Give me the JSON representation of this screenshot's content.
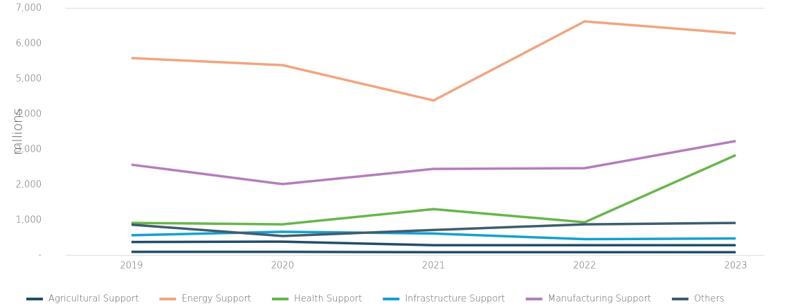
{
  "chart_data": {
    "type": "line",
    "y_label": "mllions",
    "categories": [
      "2019",
      "2020",
      "2021",
      "2022",
      "2023"
    ],
    "series": [
      {
        "name": "Agricultural Support",
        "color": "#1f4e6b",
        "values": [
          380,
          390,
          290,
          290,
          290
        ]
      },
      {
        "name": "Energy Support",
        "color": "#f0a57e",
        "values": [
          5590,
          5390,
          4390,
          6630,
          6290
        ]
      },
      {
        "name": "Health Support",
        "color": "#66b64a",
        "values": [
          920,
          880,
          1310,
          940,
          2840
        ]
      },
      {
        "name": "Infrastructure Support",
        "color": "#13a0d0",
        "values": [
          570,
          670,
          620,
          460,
          480
        ]
      },
      {
        "name": "Manufacturing Support",
        "color": "#b57cbd",
        "values": [
          2570,
          2020,
          2450,
          2470,
          3240
        ]
      },
      {
        "name": "Others",
        "color": "#3e5d6e",
        "values": [
          870,
          550,
          720,
          880,
          920
        ]
      },
      {
        "color": "#1f4e6b",
        "values": [
          100,
          100,
          90,
          90,
          90
        ]
      }
    ],
    "ylim": [
      0,
      7000
    ],
    "yticks": [
      {
        "value": 0,
        "label": "-"
      },
      {
        "value": 1000,
        "label": "1,000"
      },
      {
        "value": 2000,
        "label": "2,000"
      },
      {
        "value": 3000,
        "label": "3,000"
      },
      {
        "value": 4000,
        "label": "4,000"
      },
      {
        "value": 5000,
        "label": "5,000"
      },
      {
        "value": 6000,
        "label": "6,000"
      },
      {
        "value": 7000,
        "label": "7,000"
      }
    ],
    "grid": false,
    "legend": "bottom"
  }
}
